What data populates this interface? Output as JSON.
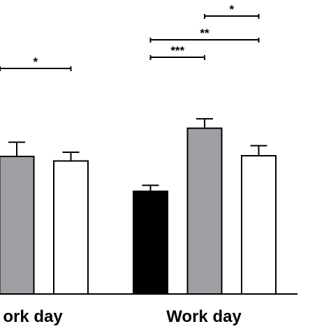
{
  "chart_data": {
    "type": "bar",
    "categories": [
      "ork day",
      "Work day"
    ],
    "series": [
      {
        "color": "#000000",
        "values": [
          null,
          29.5
        ],
        "errors": [
          null,
          1.7
        ]
      },
      {
        "color": "#a09fa3",
        "values": [
          39.5,
          47.6
        ],
        "errors": [
          4.1,
          2.7
        ]
      },
      {
        "color": "#ffffff",
        "values": [
          38.2,
          39.7
        ],
        "errors": [
          2.5,
          2.9
        ]
      }
    ],
    "ylim": [
      0,
      75
    ],
    "significance": [
      {
        "category": 0,
        "from": -1,
        "to": 0,
        "label": ""
      },
      {
        "category": 0,
        "from": 0,
        "to": 2,
        "label": "*"
      },
      {
        "category": 1,
        "from": 0,
        "to": 1,
        "label": "***"
      },
      {
        "category": 1,
        "from": 0,
        "to": 2,
        "label": "**"
      },
      {
        "category": 1,
        "from": 1,
        "to": 2,
        "label": "*"
      }
    ],
    "title": "",
    "xlabel": "",
    "ylabel": ""
  }
}
